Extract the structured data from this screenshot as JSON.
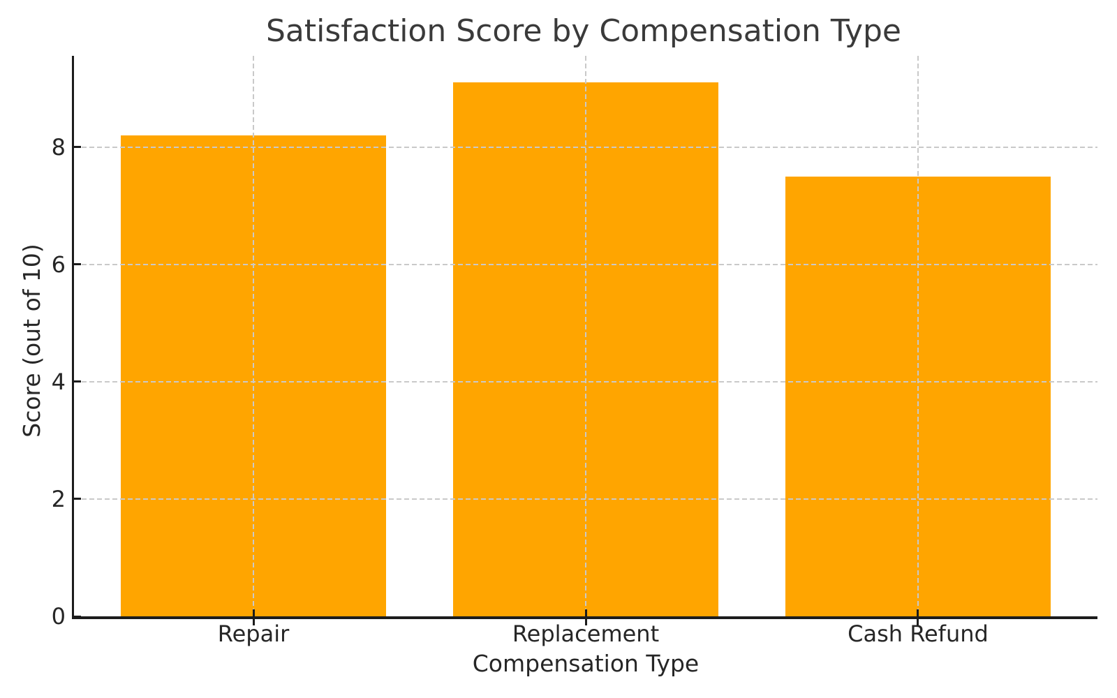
{
  "chart_data": {
    "type": "bar",
    "title": "Satisfaction Score by Compensation Type",
    "categories": [
      "Repair",
      "Replacement",
      "Cash Refund"
    ],
    "values": [
      8.2,
      9.1,
      7.5
    ],
    "xlabel": "Compensation Type",
    "ylabel": "Score (out of 10)",
    "yticks": [
      0,
      2,
      4,
      6,
      8
    ],
    "ylim": [
      0,
      9.555
    ],
    "xlim": [
      -0.54,
      2.54
    ],
    "bar_width": 0.8,
    "bar_color": "#FFA500",
    "grid": {
      "visible": true,
      "axis": "both",
      "linestyle": "dashed",
      "color": "#c9c9c9",
      "above_bars": true
    },
    "legend": "none",
    "colors": {
      "background": "#ffffff",
      "spine": "#1c1c1c",
      "tick_mark": "#1c1c1c",
      "tick_text": "#262626",
      "label_text": "#262626",
      "title_text": "#3a3a3a"
    }
  }
}
